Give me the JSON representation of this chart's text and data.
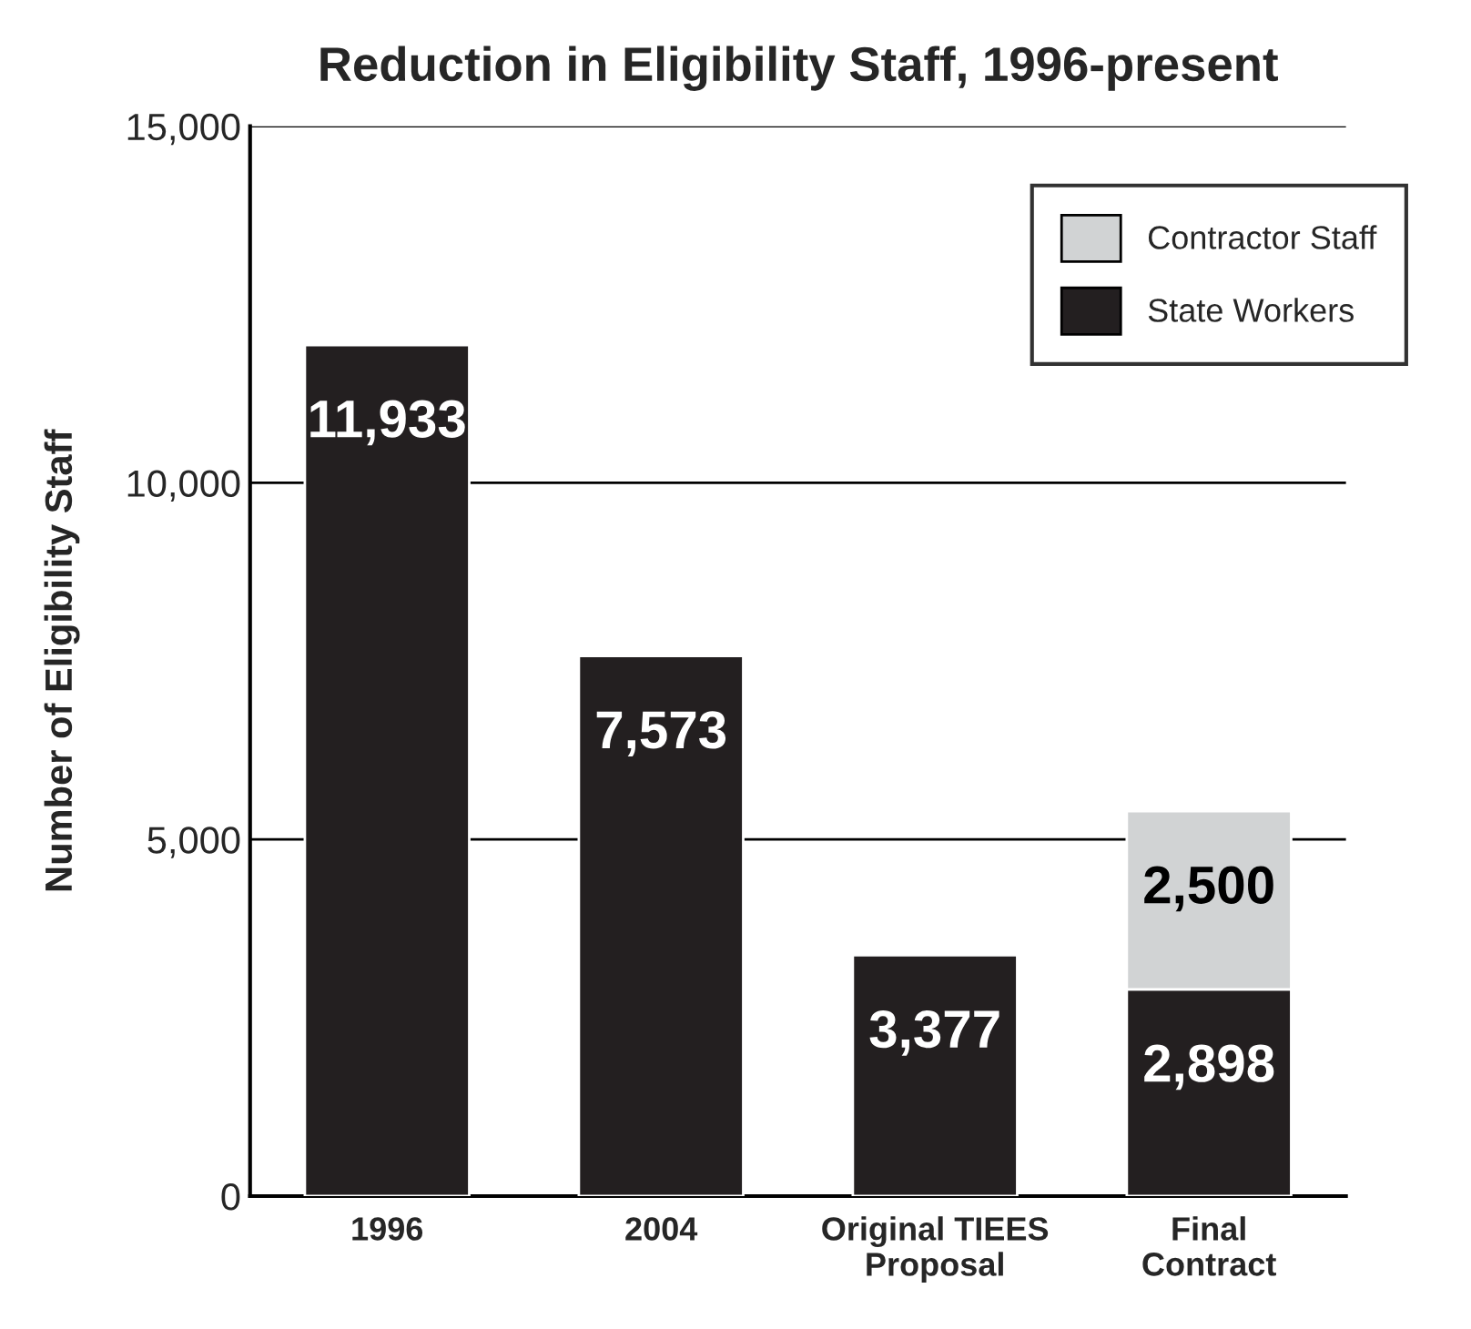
{
  "chart_data": {
    "type": "bar",
    "stacked": true,
    "title": "Reduction in Eligibility Staff, 1996-present",
    "ylabel": "Number of Eligibility Staff",
    "categories": [
      "1996",
      "2004",
      "Original TIEES\nProposal",
      "Final\nContract"
    ],
    "series": [
      {
        "name": "State Workers",
        "color": "#231f20",
        "values": [
          11933,
          7573,
          3377,
          2898
        ],
        "value_labels": [
          "11,933",
          "7,573",
          "3,377",
          "2,898"
        ]
      },
      {
        "name": "Contractor Staff",
        "color": "#d1d3d4",
        "values": [
          null,
          null,
          null,
          2500
        ],
        "value_labels": [
          null,
          null,
          null,
          "2,500"
        ]
      }
    ],
    "ylim": [
      0,
      15000
    ],
    "yticks": [
      0,
      {
        "value": 5000,
        "label": "5,000"
      },
      {
        "value": 10000,
        "label": "10,000"
      },
      {
        "value": 15000,
        "label": "15,000"
      }
    ],
    "grid": "y",
    "legend": "top right"
  }
}
